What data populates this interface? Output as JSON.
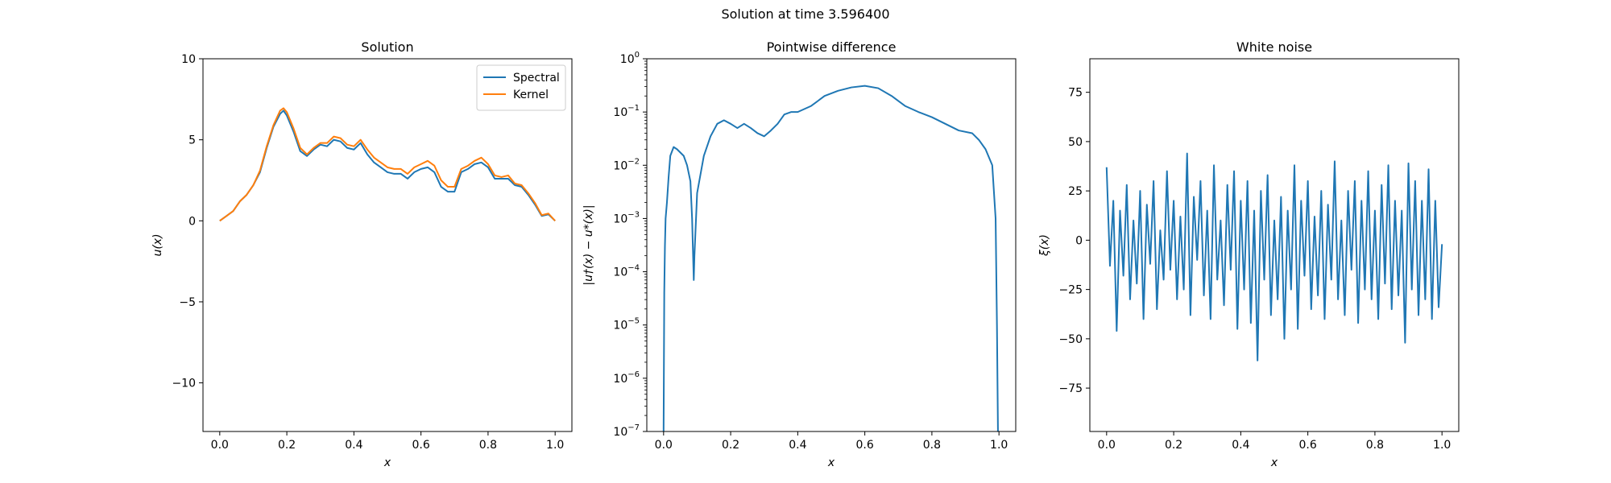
{
  "figure": {
    "title": "Solution at time 3.596400"
  },
  "chart_data": [
    {
      "type": "line",
      "title": "Solution",
      "xlabel": "x",
      "ylabel": "u(x)",
      "xlim": [
        -0.05,
        1.05
      ],
      "ylim": [
        -13.0,
        10.0
      ],
      "xticks": [
        0.0,
        0.2,
        0.4,
        0.6,
        0.8,
        1.0
      ],
      "xtick_labels": [
        "0.0",
        "0.2",
        "0.4",
        "0.6",
        "0.8",
        "1.0"
      ],
      "yticks": [
        -10,
        -5,
        0,
        5,
        10
      ],
      "ytick_labels": [
        "−10",
        "−5",
        "0",
        "5",
        "10"
      ],
      "legend": "top-right",
      "grid": false,
      "series": [
        {
          "name": "Spectral",
          "color": "#1f77b4",
          "x": [
            0.0,
            0.02,
            0.04,
            0.06,
            0.08,
            0.1,
            0.12,
            0.14,
            0.16,
            0.18,
            0.19,
            0.2,
            0.22,
            0.24,
            0.26,
            0.28,
            0.3,
            0.32,
            0.34,
            0.36,
            0.38,
            0.4,
            0.42,
            0.44,
            0.46,
            0.48,
            0.5,
            0.52,
            0.54,
            0.56,
            0.58,
            0.6,
            0.62,
            0.64,
            0.66,
            0.68,
            0.7,
            0.72,
            0.74,
            0.76,
            0.78,
            0.8,
            0.82,
            0.84,
            0.86,
            0.88,
            0.9,
            0.92,
            0.94,
            0.96,
            0.98,
            1.0
          ],
          "y": [
            0.0,
            0.3,
            0.6,
            1.2,
            1.6,
            2.2,
            3.0,
            4.5,
            5.8,
            6.6,
            6.8,
            6.5,
            5.5,
            4.3,
            4.0,
            4.4,
            4.7,
            4.6,
            5.0,
            4.9,
            4.5,
            4.4,
            4.8,
            4.1,
            3.6,
            3.3,
            3.0,
            2.9,
            2.9,
            2.6,
            3.0,
            3.2,
            3.3,
            3.0,
            2.1,
            1.8,
            1.8,
            3.0,
            3.2,
            3.5,
            3.6,
            3.3,
            2.6,
            2.6,
            2.6,
            2.2,
            2.1,
            1.6,
            1.0,
            0.3,
            0.4,
            0.0
          ]
        },
        {
          "name": "Kernel",
          "color": "#ff7f0e",
          "x": [
            0.0,
            0.02,
            0.04,
            0.06,
            0.08,
            0.1,
            0.12,
            0.14,
            0.16,
            0.18,
            0.19,
            0.2,
            0.22,
            0.24,
            0.26,
            0.28,
            0.3,
            0.32,
            0.34,
            0.36,
            0.38,
            0.4,
            0.42,
            0.44,
            0.46,
            0.48,
            0.5,
            0.52,
            0.54,
            0.56,
            0.58,
            0.6,
            0.62,
            0.64,
            0.66,
            0.68,
            0.7,
            0.72,
            0.74,
            0.76,
            0.78,
            0.8,
            0.82,
            0.84,
            0.86,
            0.88,
            0.9,
            0.92,
            0.94,
            0.96,
            0.98,
            1.0
          ],
          "y": [
            0.0,
            0.3,
            0.6,
            1.2,
            1.6,
            2.2,
            3.1,
            4.6,
            5.9,
            6.8,
            6.95,
            6.7,
            5.7,
            4.5,
            4.1,
            4.5,
            4.8,
            4.8,
            5.2,
            5.1,
            4.7,
            4.6,
            5.0,
            4.4,
            3.9,
            3.6,
            3.3,
            3.2,
            3.2,
            2.9,
            3.3,
            3.5,
            3.7,
            3.4,
            2.5,
            2.1,
            2.1,
            3.2,
            3.4,
            3.7,
            3.9,
            3.5,
            2.8,
            2.7,
            2.8,
            2.3,
            2.2,
            1.7,
            1.1,
            0.35,
            0.45,
            0.0
          ]
        }
      ]
    },
    {
      "type": "line",
      "title": "Pointwise difference",
      "xlabel": "x",
      "ylabel": "|u†(x) − u*(x)|",
      "xlim": [
        -0.05,
        1.05
      ],
      "ylim": [
        1e-07,
        1
      ],
      "yscale": "log",
      "xticks": [
        0.0,
        0.2,
        0.4,
        0.6,
        0.8,
        1.0
      ],
      "xtick_labels": [
        "0.0",
        "0.2",
        "0.4",
        "0.6",
        "0.8",
        "1.0"
      ],
      "yticks": [
        1e-07,
        1e-06,
        1e-05,
        0.0001,
        0.001,
        0.01,
        0.1,
        1
      ],
      "ytick_labels": [
        [
          "10",
          "−7"
        ],
        [
          "10",
          "−6"
        ],
        [
          "10",
          "−5"
        ],
        [
          "10",
          "−4"
        ],
        [
          "10",
          "−3"
        ],
        [
          "10",
          "−2"
        ],
        [
          "10",
          "−1"
        ],
        [
          "10",
          "0"
        ]
      ],
      "grid": false,
      "series": [
        {
          "color": "#1f77b4",
          "x": [
            0.0,
            0.002,
            0.004,
            0.006,
            0.01,
            0.015,
            0.02,
            0.03,
            0.04,
            0.06,
            0.07,
            0.08,
            0.085,
            0.088,
            0.09,
            0.092,
            0.1,
            0.12,
            0.14,
            0.16,
            0.18,
            0.2,
            0.22,
            0.24,
            0.26,
            0.28,
            0.3,
            0.32,
            0.34,
            0.36,
            0.38,
            0.4,
            0.44,
            0.48,
            0.52,
            0.56,
            0.6,
            0.64,
            0.68,
            0.72,
            0.76,
            0.8,
            0.84,
            0.88,
            0.92,
            0.94,
            0.96,
            0.98,
            0.99,
            0.994,
            0.997,
            1.0
          ],
          "y": [
            1e-07,
            4e-05,
            0.0003,
            0.001,
            0.002,
            0.006,
            0.015,
            0.022,
            0.02,
            0.015,
            0.01,
            0.005,
            0.001,
            0.0002,
            7e-05,
            0.0002,
            0.003,
            0.015,
            0.035,
            0.06,
            0.07,
            0.06,
            0.05,
            0.06,
            0.05,
            0.04,
            0.035,
            0.045,
            0.06,
            0.09,
            0.1,
            0.1,
            0.13,
            0.2,
            0.25,
            0.29,
            0.31,
            0.28,
            0.2,
            0.13,
            0.1,
            0.08,
            0.06,
            0.045,
            0.04,
            0.03,
            0.02,
            0.01,
            0.001,
            1e-05,
            1e-07,
            1e-07
          ]
        }
      ]
    },
    {
      "type": "line",
      "title": "White noise",
      "xlabel": "x",
      "ylabel": "ξ(x)",
      "xlim": [
        -0.05,
        1.05
      ],
      "ylim": [
        -97,
        92
      ],
      "xticks": [
        0.0,
        0.2,
        0.4,
        0.6,
        0.8,
        1.0
      ],
      "xtick_labels": [
        "0.0",
        "0.2",
        "0.4",
        "0.6",
        "0.8",
        "1.0"
      ],
      "yticks": [
        -75,
        -50,
        -25,
        0,
        25,
        50,
        75
      ],
      "ytick_labels": [
        "−75",
        "−50",
        "−25",
        "0",
        "25",
        "50",
        "75"
      ],
      "grid": false,
      "series": [
        {
          "color": "#1f77b4",
          "x": [
            0.0,
            0.01,
            0.02,
            0.03,
            0.04,
            0.05,
            0.06,
            0.07,
            0.08,
            0.09,
            0.1,
            0.11,
            0.12,
            0.13,
            0.14,
            0.15,
            0.16,
            0.17,
            0.18,
            0.19,
            0.2,
            0.21,
            0.22,
            0.23,
            0.24,
            0.25,
            0.26,
            0.27,
            0.28,
            0.29,
            0.3,
            0.31,
            0.32,
            0.33,
            0.34,
            0.35,
            0.36,
            0.37,
            0.38,
            0.39,
            0.4,
            0.41,
            0.42,
            0.43,
            0.44,
            0.45,
            0.46,
            0.47,
            0.48,
            0.49,
            0.5,
            0.51,
            0.52,
            0.53,
            0.54,
            0.55,
            0.56,
            0.57,
            0.58,
            0.59,
            0.6,
            0.61,
            0.62,
            0.63,
            0.64,
            0.65,
            0.66,
            0.67,
            0.68,
            0.69,
            0.7,
            0.71,
            0.72,
            0.73,
            0.74,
            0.75,
            0.76,
            0.77,
            0.78,
            0.79,
            0.8,
            0.81,
            0.82,
            0.83,
            0.84,
            0.85,
            0.86,
            0.87,
            0.88,
            0.89,
            0.9,
            0.91,
            0.92,
            0.93,
            0.94,
            0.95,
            0.96,
            0.97,
            0.98,
            0.99,
            1.0
          ],
          "y": [
            37,
            -13,
            20,
            -46,
            15,
            -18,
            28,
            -30,
            10,
            -22,
            25,
            -40,
            18,
            -12,
            30,
            -35,
            5,
            -20,
            35,
            -15,
            20,
            -30,
            12,
            -25,
            44,
            -38,
            22,
            -10,
            30,
            -28,
            15,
            -40,
            38,
            -20,
            10,
            -33,
            28,
            -15,
            35,
            -45,
            20,
            -25,
            30,
            -42,
            15,
            -61,
            25,
            -20,
            33,
            -38,
            10,
            -30,
            22,
            -50,
            15,
            -25,
            38,
            -45,
            20,
            -18,
            30,
            -35,
            12,
            -28,
            25,
            -40,
            18,
            -20,
            40,
            -30,
            10,
            -38,
            25,
            -15,
            30,
            -42,
            20,
            -25,
            35,
            -30,
            15,
            -40,
            28,
            -22,
            38,
            -35,
            20,
            -28,
            15,
            -52,
            39,
            -25,
            30,
            -38,
            20,
            -30,
            36,
            -40,
            20,
            -34,
            -2
          ]
        }
      ]
    }
  ]
}
